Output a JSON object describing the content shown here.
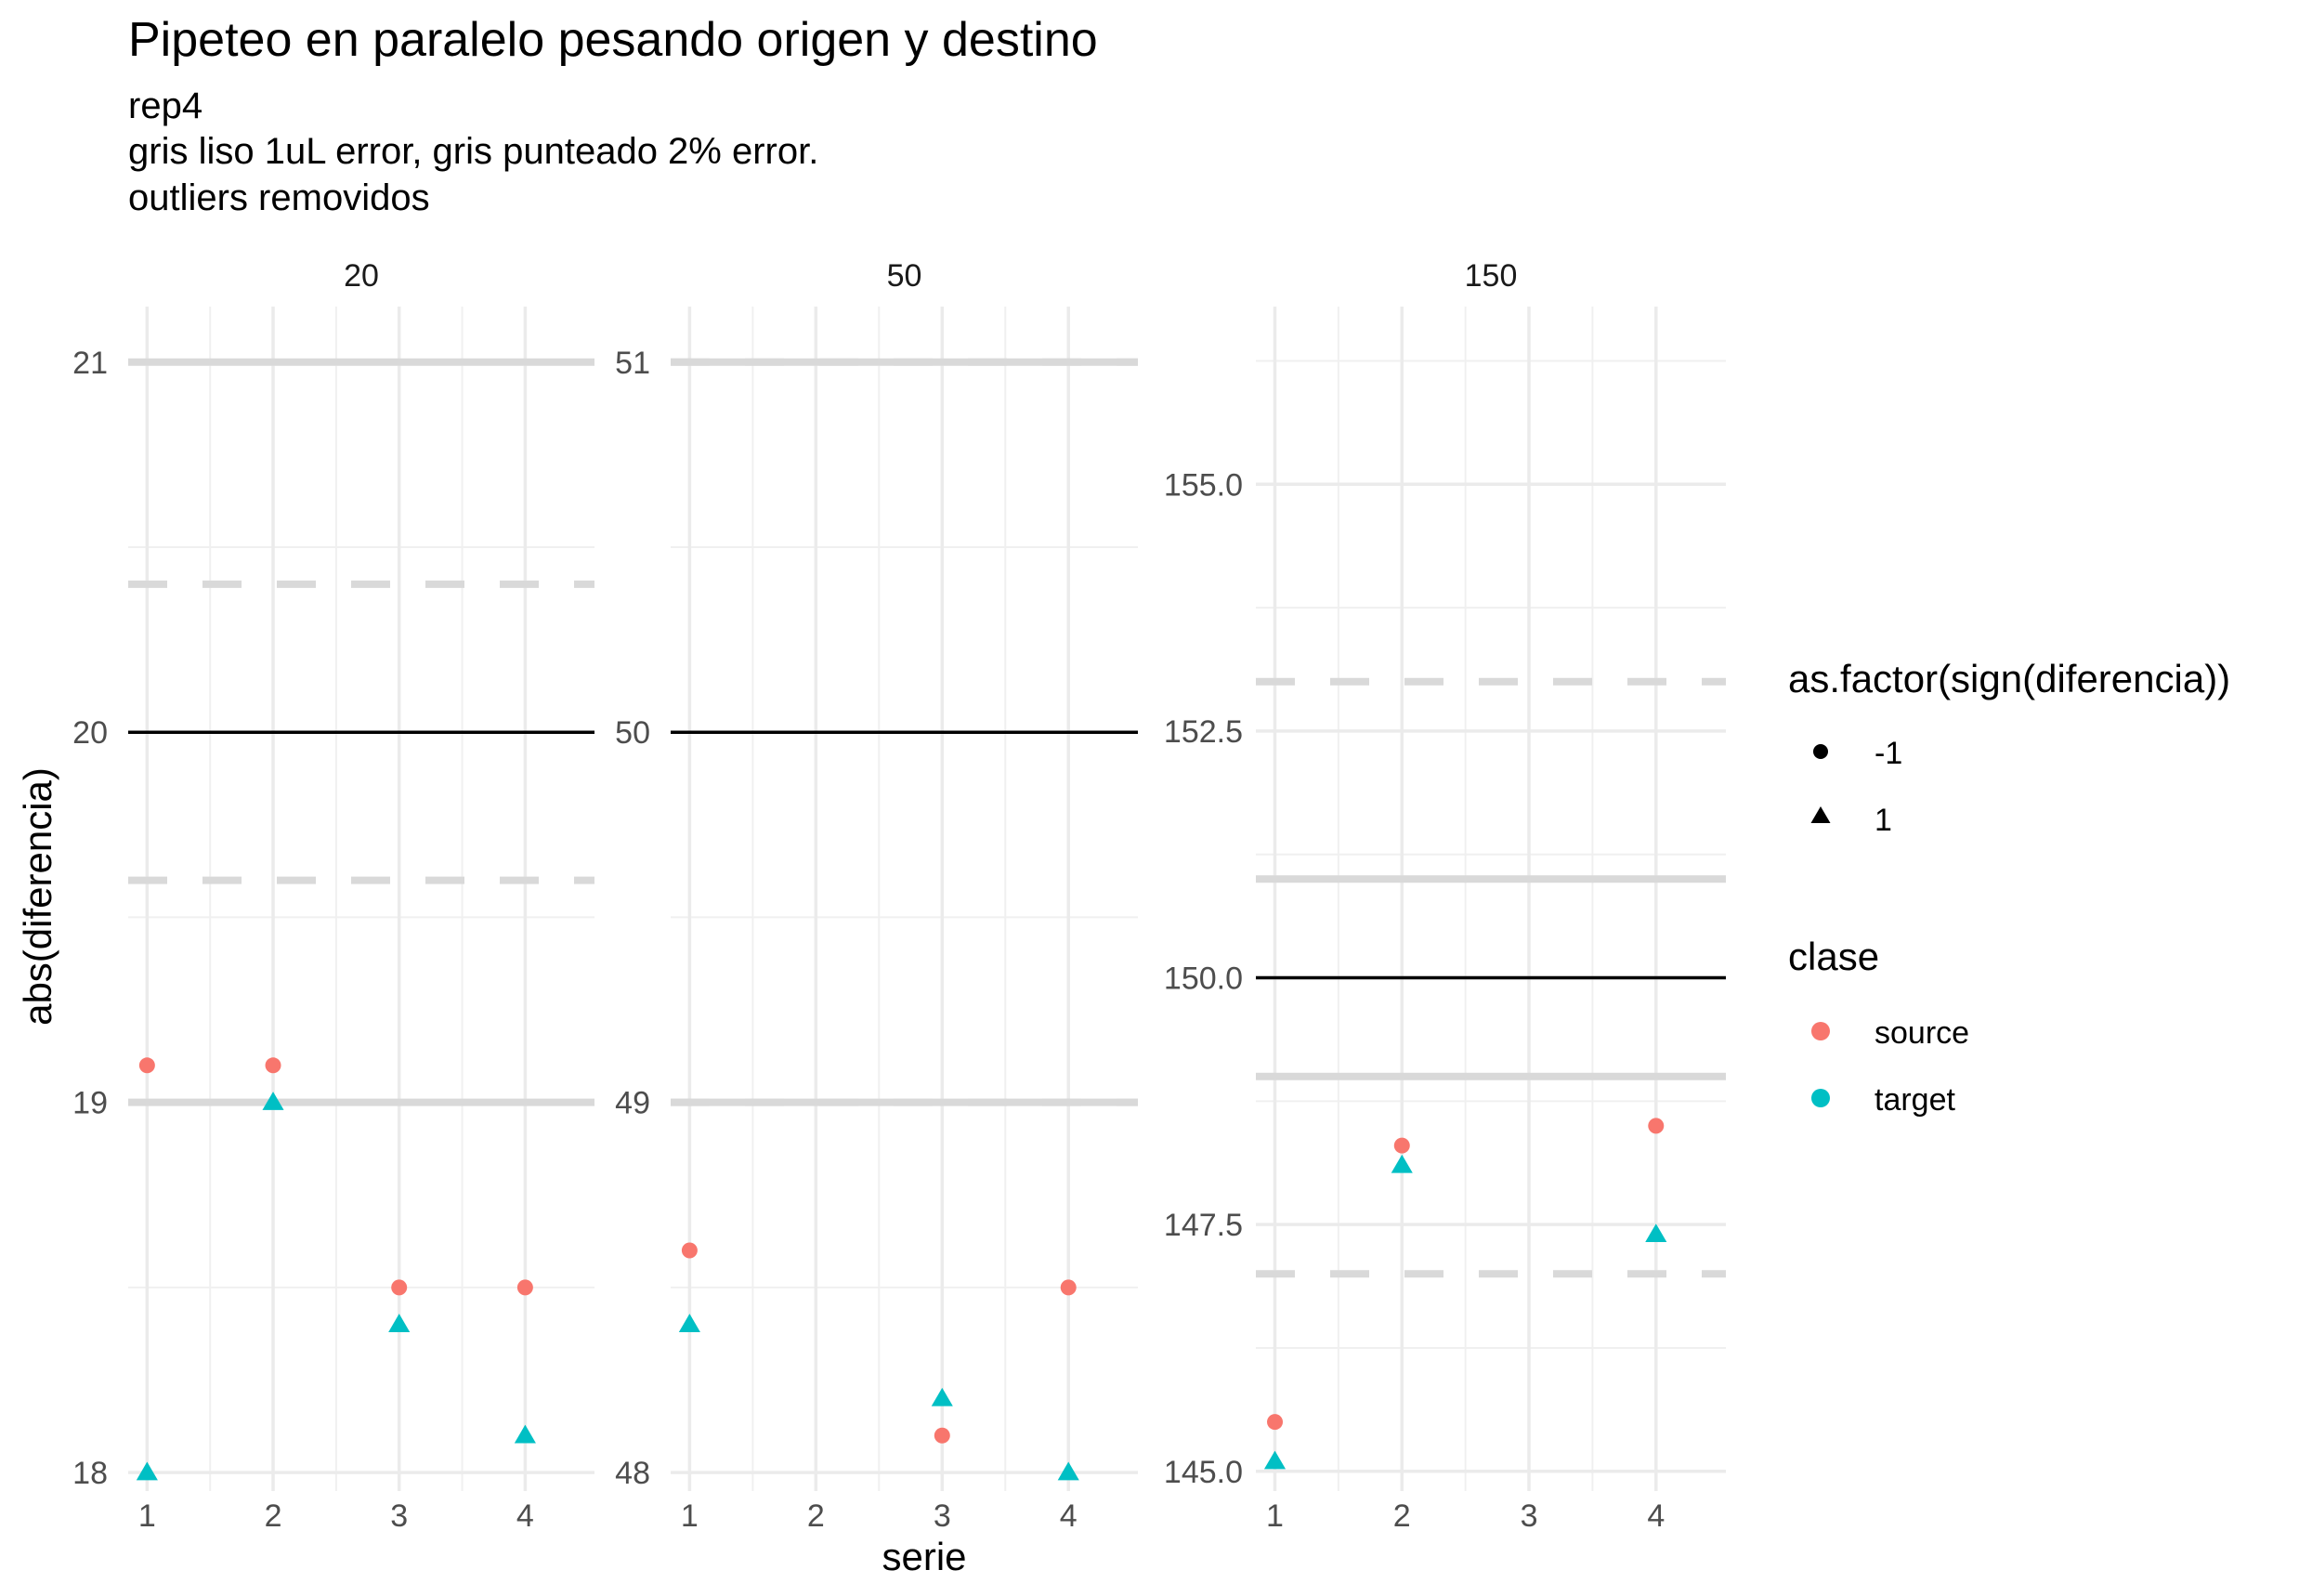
{
  "chart_data": {
    "type": "scatter",
    "title": "Pipeteo en paralelo pesando origen y destino",
    "subtitle": [
      "rep4",
      "gris liso 1uL error, gris punteado 2% error.",
      "outliers removidos"
    ],
    "xlabel": "serie",
    "ylabel": "abs(diferencia)",
    "x_categories": [
      "1",
      "2",
      "3",
      "4"
    ],
    "legend_shape": {
      "title": "as.factor(sign(diferencia))",
      "entries": [
        "-1",
        "1"
      ],
      "shapes": [
        "circle",
        "triangle"
      ]
    },
    "legend_color": {
      "title": "clase",
      "entries": [
        "source",
        "target"
      ],
      "colors": [
        "#F8766D",
        "#00BFC4"
      ]
    },
    "panels": [
      {
        "strip": "20",
        "ylim": [
          17.95,
          21.15
        ],
        "yticks": [
          18,
          19,
          20,
          21
        ],
        "ytick_labels": [
          "18",
          "19",
          "20",
          "21"
        ],
        "target_line": 20,
        "solid_error_lines": [
          19,
          21
        ],
        "dashed_error_lines": [
          19.6,
          20.4
        ],
        "points": [
          {
            "clase": "source",
            "sign": "-1",
            "x": 1,
            "y": 19.1
          },
          {
            "clase": "source",
            "sign": "-1",
            "x": 2,
            "y": 19.1
          },
          {
            "clase": "source",
            "sign": "-1",
            "x": 3,
            "y": 18.5
          },
          {
            "clase": "source",
            "sign": "-1",
            "x": 4,
            "y": 18.5
          },
          {
            "clase": "target",
            "sign": "1",
            "x": 1,
            "y": 18.0
          },
          {
            "clase": "target",
            "sign": "1",
            "x": 2,
            "y": 19.0
          },
          {
            "clase": "target",
            "sign": "1",
            "x": 3,
            "y": 18.4
          },
          {
            "clase": "target",
            "sign": "1",
            "x": 4,
            "y": 18.1
          }
        ]
      },
      {
        "strip": "50",
        "ylim": [
          47.95,
          51.15
        ],
        "yticks": [
          48,
          49,
          50,
          51
        ],
        "ytick_labels": [
          "48",
          "49",
          "50",
          "51"
        ],
        "target_line": 50,
        "solid_error_lines": [
          49,
          51
        ],
        "dashed_error_lines": [
          49,
          51
        ],
        "points": [
          {
            "clase": "source",
            "sign": "-1",
            "x": 1,
            "y": 48.6
          },
          {
            "clase": "source",
            "sign": "-1",
            "x": 3,
            "y": 48.1
          },
          {
            "clase": "source",
            "sign": "-1",
            "x": 4,
            "y": 48.5
          },
          {
            "clase": "target",
            "sign": "1",
            "x": 1,
            "y": 48.4
          },
          {
            "clase": "target",
            "sign": "1",
            "x": 3,
            "y": 48.2
          },
          {
            "clase": "target",
            "sign": "1",
            "x": 4,
            "y": 48.0
          }
        ]
      },
      {
        "strip": "150",
        "ylim": [
          144.8,
          156.8
        ],
        "yticks": [
          145,
          147.5,
          150,
          152.5,
          155
        ],
        "ytick_labels": [
          "145.0",
          "147.5",
          "150.0",
          "152.5",
          "155.0"
        ],
        "target_line": 150,
        "solid_error_lines": [
          149,
          151
        ],
        "dashed_error_lines": [
          147,
          153
        ],
        "points": [
          {
            "clase": "source",
            "sign": "-1",
            "x": 1,
            "y": 145.5
          },
          {
            "clase": "source",
            "sign": "-1",
            "x": 2,
            "y": 148.3
          },
          {
            "clase": "source",
            "sign": "-1",
            "x": 4,
            "y": 148.5
          },
          {
            "clase": "target",
            "sign": "1",
            "x": 1,
            "y": 145.1
          },
          {
            "clase": "target",
            "sign": "1",
            "x": 2,
            "y": 148.1
          },
          {
            "clase": "target",
            "sign": "1",
            "x": 4,
            "y": 147.4
          }
        ]
      }
    ]
  }
}
